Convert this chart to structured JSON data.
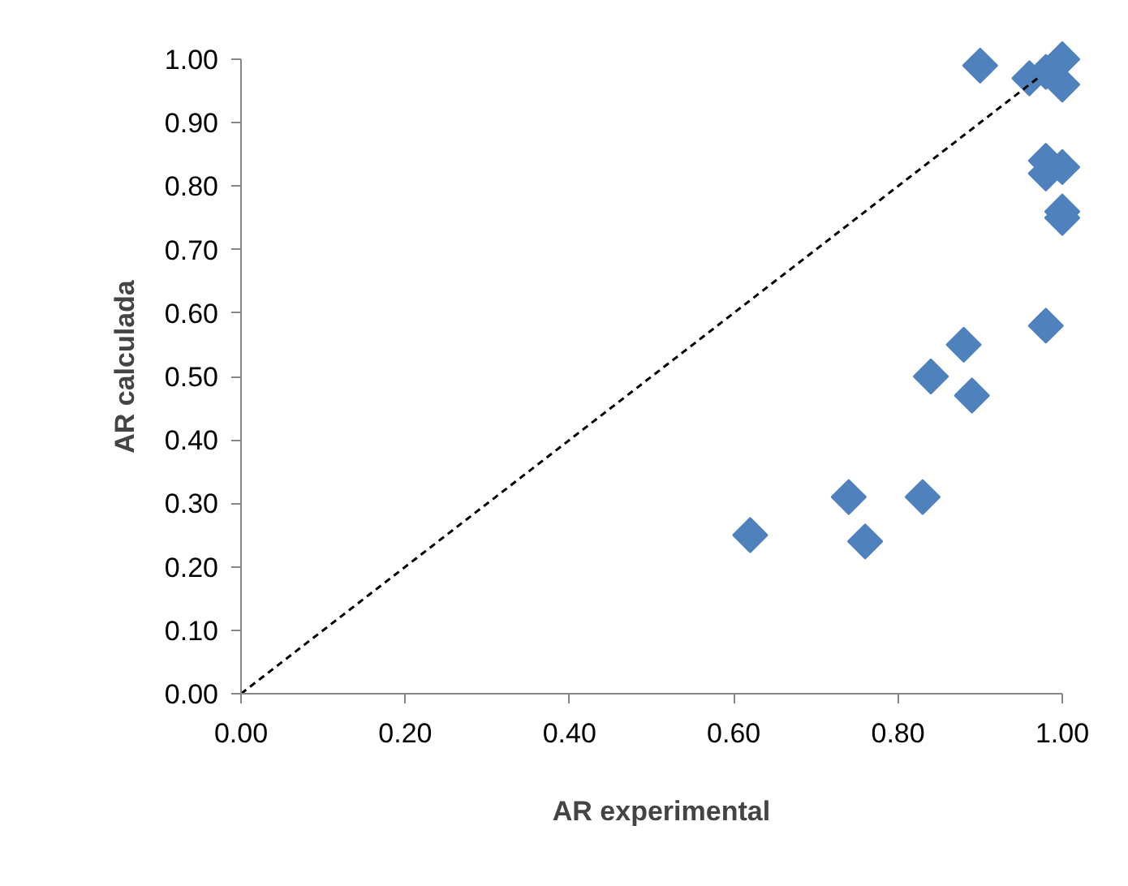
{
  "chart_data": {
    "type": "scatter",
    "xlabel": "AR experimental",
    "ylabel": "AR calculada",
    "x": [
      0.62,
      0.74,
      0.76,
      0.83,
      0.84,
      0.88,
      0.89,
      0.98,
      0.9,
      0.96,
      0.98,
      1.0,
      1.0,
      0.98,
      0.98,
      1.0,
      1.0,
      1.0
    ],
    "series": [
      {
        "marker": "diamond",
        "color": "#4f81bd",
        "values": [
          0.25,
          0.31,
          0.24,
          0.31,
          0.5,
          0.55,
          0.47,
          0.58,
          0.99,
          0.97,
          0.98,
          1.0,
          0.96,
          0.84,
          0.82,
          0.83,
          0.76,
          0.75
        ]
      },
      {
        "type": "line",
        "color": "#000000",
        "line_style": "dashed",
        "x": [
          0,
          0.97
        ],
        "values": [
          0,
          0.97
        ]
      }
    ],
    "xlim": [
      0,
      1
    ],
    "ylim": [
      0,
      1
    ],
    "xticks": [
      {
        "value": 0,
        "label": "0.00"
      },
      {
        "value": 0.2,
        "label": "0.20"
      },
      {
        "value": 0.4,
        "label": "0.40"
      },
      {
        "value": 0.6,
        "label": "0.60"
      },
      {
        "value": 0.8,
        "label": "0.80"
      },
      {
        "value": 1,
        "label": "1.00"
      }
    ],
    "yticks": [
      {
        "value": 0,
        "label": "0.00"
      },
      {
        "value": 0.1,
        "label": "0.10"
      },
      {
        "value": 0.2,
        "label": "0.20"
      },
      {
        "value": 0.3,
        "label": "0.30"
      },
      {
        "value": 0.4,
        "label": "0.40"
      },
      {
        "value": 0.5,
        "label": "0.50"
      },
      {
        "value": 0.6,
        "label": "0.60"
      },
      {
        "value": 0.7,
        "label": "0.70"
      },
      {
        "value": 0.8,
        "label": "0.80"
      },
      {
        "value": 0.9,
        "label": "0.90"
      },
      {
        "value": 1,
        "label": "1.00"
      }
    ],
    "grid": false
  }
}
